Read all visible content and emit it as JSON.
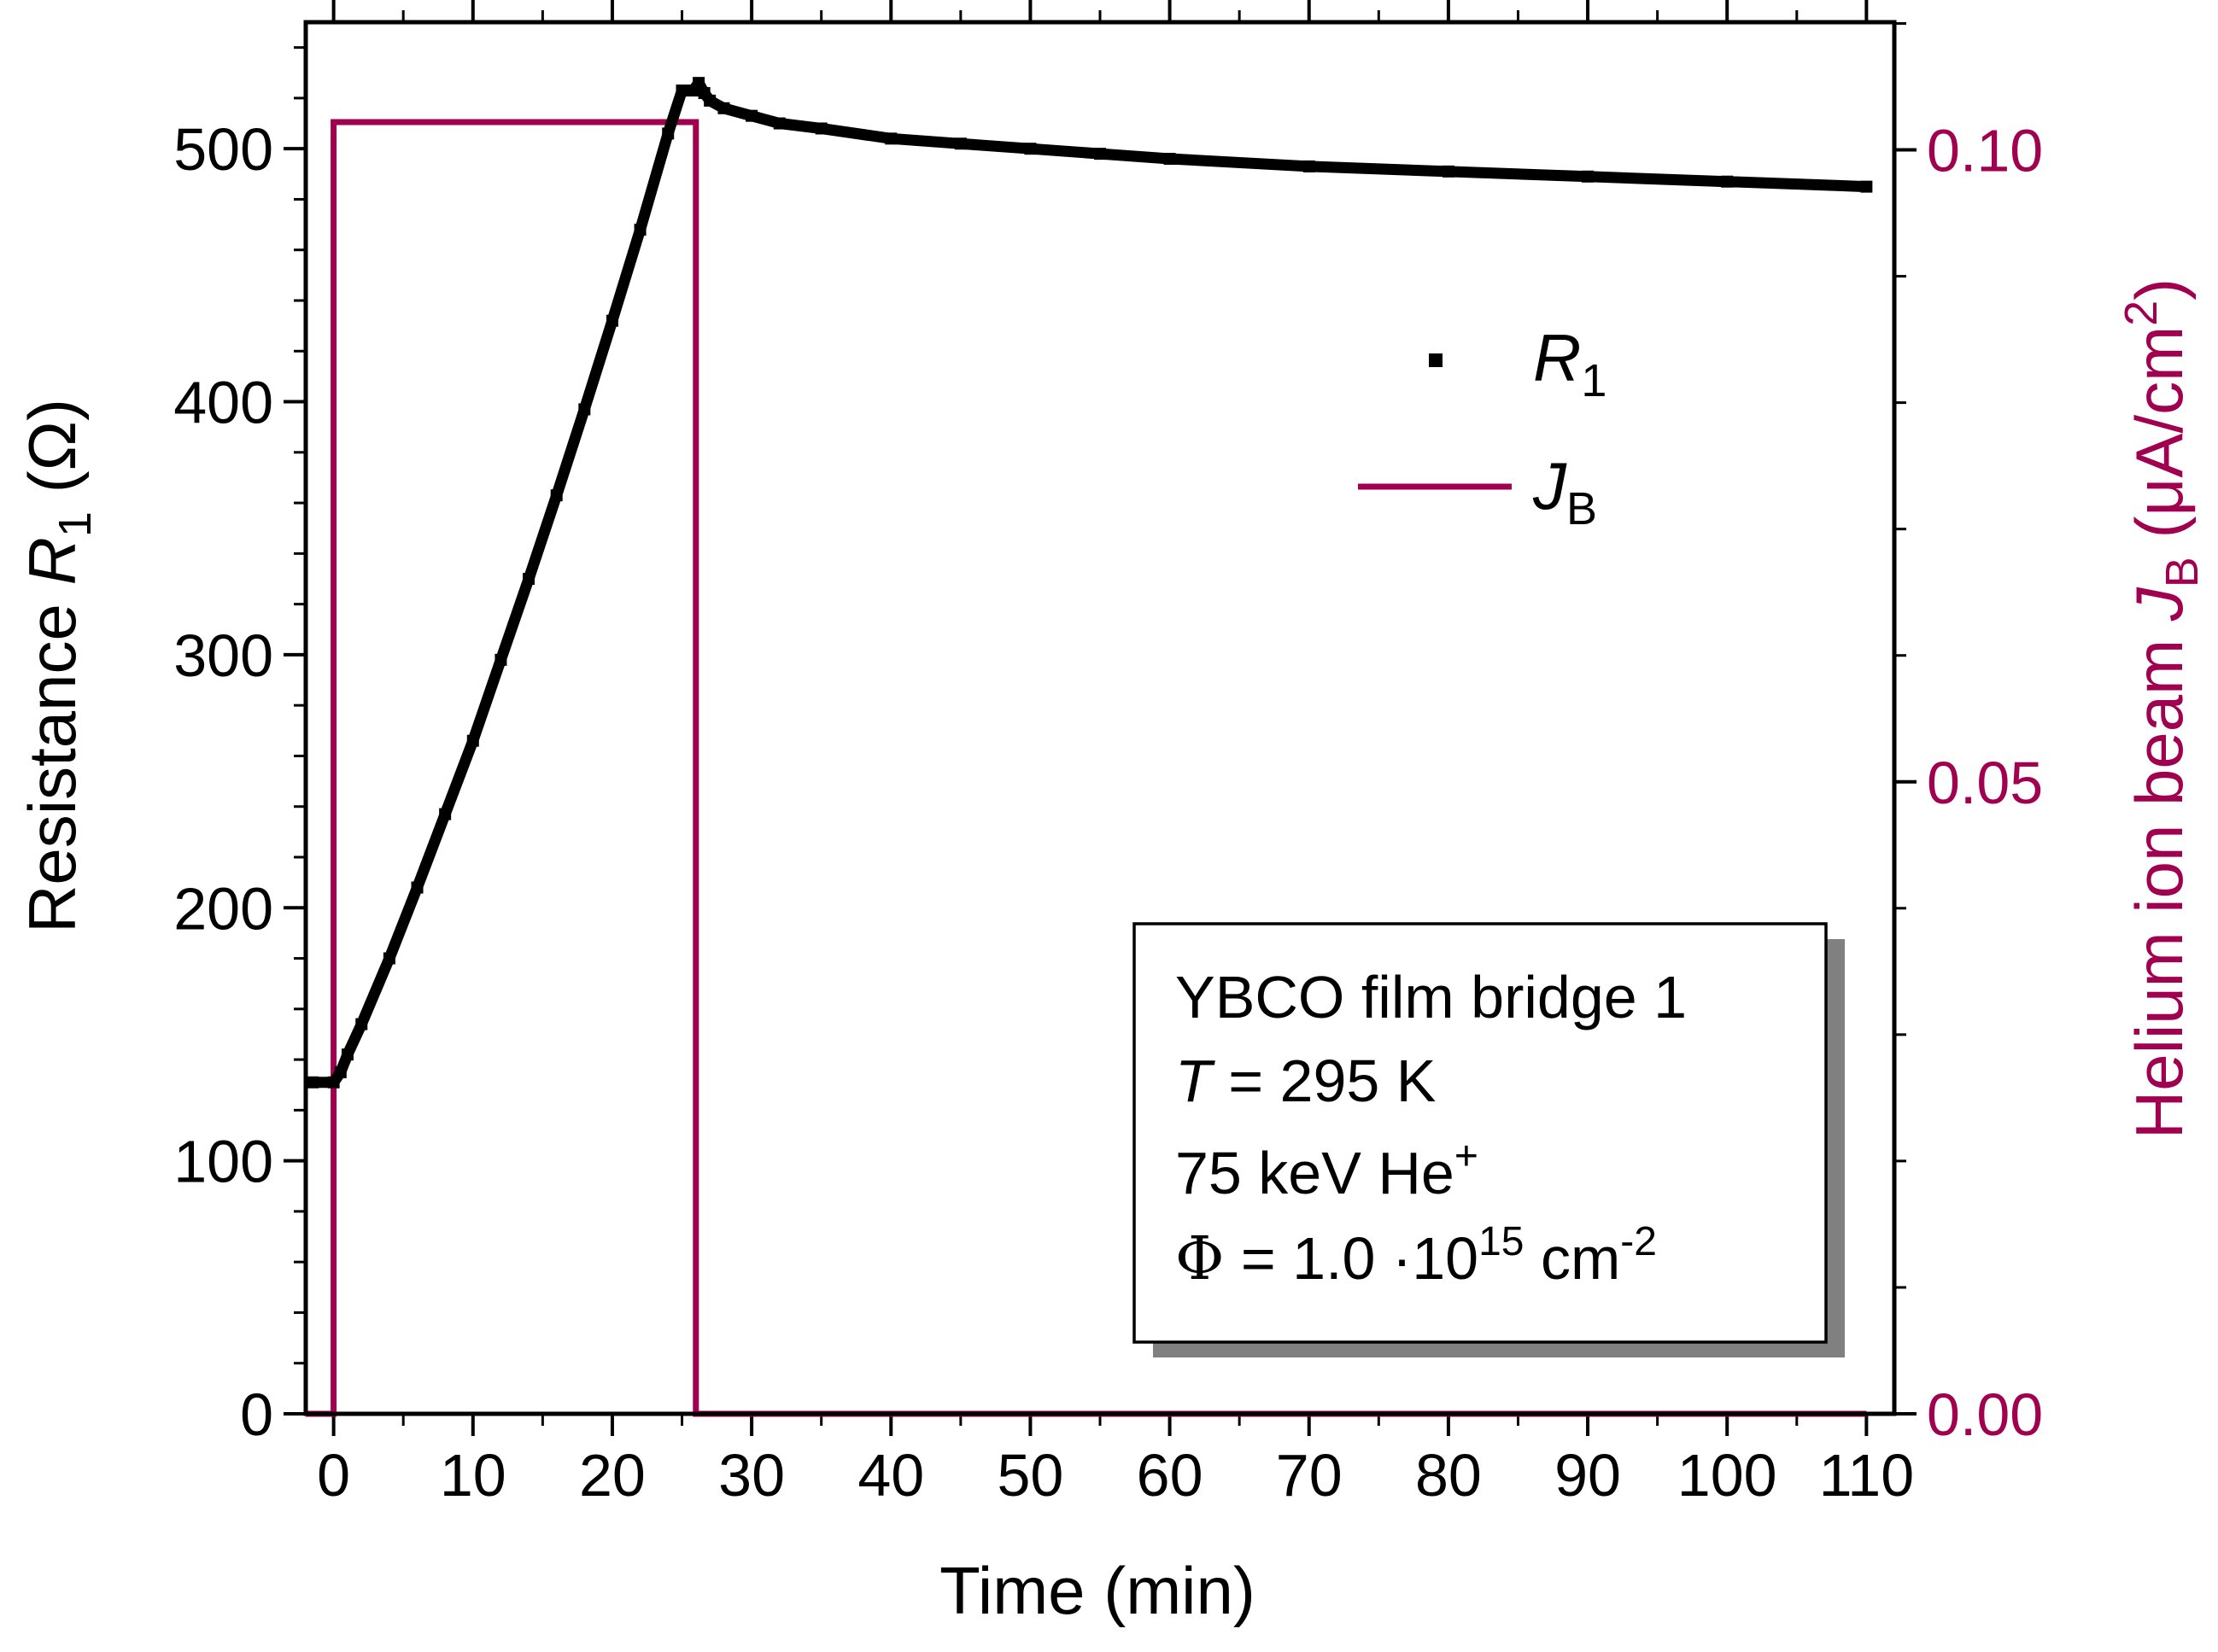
{
  "colors": {
    "resistance": "#000000",
    "beam": "#a0004f",
    "axis": "#000000",
    "shadow": "#808080"
  },
  "chart_data": {
    "type": "line",
    "x_axis": {
      "label": "Time  (min)",
      "range": [
        -2,
        112
      ],
      "ticks": [
        0,
        10,
        20,
        30,
        40,
        50,
        60,
        70,
        80,
        90,
        100,
        110
      ],
      "tick_labels": [
        "0",
        "10",
        "20",
        "30",
        "40",
        "50",
        "60",
        "70",
        "80",
        "90",
        "100",
        "110"
      ]
    },
    "y_left": {
      "label_main": "Resistance  ",
      "label_var": "R",
      "label_sub": "1",
      "label_unit": "  (Ω)",
      "range": [
        0,
        550
      ],
      "ticks": [
        0,
        100,
        200,
        300,
        400,
        500
      ],
      "tick_labels": [
        "0",
        "100",
        "200",
        "300",
        "400",
        "500"
      ]
    },
    "y_right": {
      "label_main": "Helium ion beam  ",
      "label_var": "J",
      "label_sub": "B",
      "label_unit_pre": "  (μA/cm",
      "label_unit_sup": "2",
      "label_unit_post": ")",
      "range": [
        0,
        0.1101
      ],
      "ticks": [
        0,
        0.05,
        0.1
      ],
      "tick_labels": [
        "0.00",
        "0.05",
        "0.10"
      ]
    },
    "series": [
      {
        "name": "R1",
        "legend_var": "R",
        "legend_sub": "1",
        "marker": "square",
        "axis": "left",
        "x": [
          -1.5,
          0,
          0.5,
          1,
          2,
          4,
          6,
          8,
          10,
          12,
          14,
          16,
          18,
          20,
          22,
          24,
          25,
          25.8,
          26.2,
          26.6,
          27,
          28,
          30,
          32,
          35,
          40,
          45,
          50,
          55,
          60,
          70,
          80,
          90,
          100,
          110
        ],
        "values": [
          131,
          131,
          135,
          142,
          154,
          180,
          208,
          237,
          266,
          298,
          330,
          363,
          397,
          432,
          468,
          506,
          523,
          523,
          526,
          522,
          519,
          516,
          513,
          510,
          508,
          504,
          502,
          500,
          498,
          496,
          493,
          491,
          489,
          487,
          485
        ]
      },
      {
        "name": "JB",
        "legend_var": "J",
        "legend_sub": "B",
        "marker": "line",
        "axis": "right",
        "x": [
          -2,
          0,
          0,
          26,
          26,
          110
        ],
        "values": [
          0,
          0,
          0.1022,
          0.1022,
          0,
          0
        ]
      }
    ],
    "annotation": {
      "line1": "YBCO film bridge 1",
      "line2_var": "T",
      "line2_rest": " = 295 K",
      "line3": "75 keV He",
      "line3_sup": "+",
      "line4_sym": "Φ",
      "line4_rest": " = 1.0 ·10",
      "line4_sup": "15",
      "line4_unit": " cm",
      "line4_unit_sup": "-2"
    },
    "legend_placement": "upper-center",
    "grid": false
  }
}
